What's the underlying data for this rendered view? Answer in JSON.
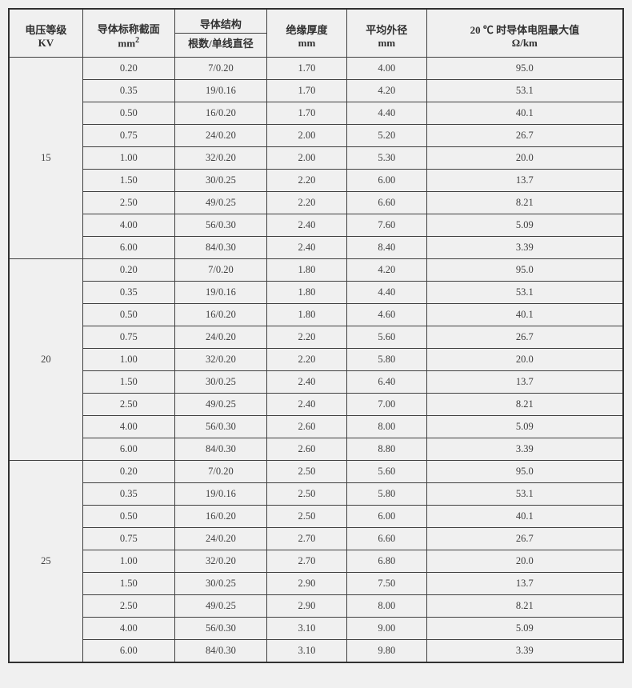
{
  "table": {
    "background_color": "#f0f0f0",
    "border_color": "#404040",
    "text_color": "#404040",
    "font_family": "SimSun",
    "header_fontsize": 13,
    "cell_fontsize": 12.5,
    "col_widths_pct": [
      12,
      15,
      15,
      13,
      13,
      32
    ],
    "header": {
      "voltage_line1": "电压等级",
      "voltage_line2": "KV",
      "cross_section_line1": "导体标称截面",
      "cross_section_line2_prefix": "mm",
      "cross_section_line2_sup": "2",
      "structure_line1": "导体结构",
      "structure_line2": "根数/单线直径",
      "insulation_line1": "绝缘厚度",
      "insulation_line2": "mm",
      "diameter_line1": "平均外径",
      "diameter_line2": "mm",
      "resistance_line1": "20 ℃ 时导体电阻最大值",
      "resistance_line2": "Ω/km"
    },
    "groups": [
      {
        "voltage": "15",
        "rows": [
          {
            "cs": "0.20",
            "struct": "7/0.20",
            "ins": "1.70",
            "dia": "4.00",
            "res": "95.0"
          },
          {
            "cs": "0.35",
            "struct": "19/0.16",
            "ins": "1.70",
            "dia": "4.20",
            "res": "53.1"
          },
          {
            "cs": "0.50",
            "struct": "16/0.20",
            "ins": "1.70",
            "dia": "4.40",
            "res": "40.1"
          },
          {
            "cs": "0.75",
            "struct": "24/0.20",
            "ins": "2.00",
            "dia": "5.20",
            "res": "26.7"
          },
          {
            "cs": "1.00",
            "struct": "32/0.20",
            "ins": "2.00",
            "dia": "5.30",
            "res": "20.0"
          },
          {
            "cs": "1.50",
            "struct": "30/0.25",
            "ins": "2.20",
            "dia": "6.00",
            "res": "13.7"
          },
          {
            "cs": "2.50",
            "struct": "49/0.25",
            "ins": "2.20",
            "dia": "6.60",
            "res": "8.21"
          },
          {
            "cs": "4.00",
            "struct": "56/0.30",
            "ins": "2.40",
            "dia": "7.60",
            "res": "5.09"
          },
          {
            "cs": "6.00",
            "struct": "84/0.30",
            "ins": "2.40",
            "dia": "8.40",
            "res": "3.39"
          }
        ]
      },
      {
        "voltage": "20",
        "rows": [
          {
            "cs": "0.20",
            "struct": "7/0.20",
            "ins": "1.80",
            "dia": "4.20",
            "res": "95.0"
          },
          {
            "cs": "0.35",
            "struct": "19/0.16",
            "ins": "1.80",
            "dia": "4.40",
            "res": "53.1"
          },
          {
            "cs": "0.50",
            "struct": "16/0.20",
            "ins": "1.80",
            "dia": "4.60",
            "res": "40.1"
          },
          {
            "cs": "0.75",
            "struct": "24/0.20",
            "ins": "2.20",
            "dia": "5.60",
            "res": "26.7"
          },
          {
            "cs": "1.00",
            "struct": "32/0.20",
            "ins": "2.20",
            "dia": "5.80",
            "res": "20.0"
          },
          {
            "cs": "1.50",
            "struct": "30/0.25",
            "ins": "2.40",
            "dia": "6.40",
            "res": "13.7"
          },
          {
            "cs": "2.50",
            "struct": "49/0.25",
            "ins": "2.40",
            "dia": "7.00",
            "res": "8.21"
          },
          {
            "cs": "4.00",
            "struct": "56/0.30",
            "ins": "2.60",
            "dia": "8.00",
            "res": "5.09"
          },
          {
            "cs": "6.00",
            "struct": "84/0.30",
            "ins": "2.60",
            "dia": "8.80",
            "res": "3.39"
          }
        ]
      },
      {
        "voltage": "25",
        "rows": [
          {
            "cs": "0.20",
            "struct": "7/0.20",
            "ins": "2.50",
            "dia": "5.60",
            "res": "95.0"
          },
          {
            "cs": "0.35",
            "struct": "19/0.16",
            "ins": "2.50",
            "dia": "5.80",
            "res": "53.1"
          },
          {
            "cs": "0.50",
            "struct": "16/0.20",
            "ins": "2.50",
            "dia": "6.00",
            "res": "40.1"
          },
          {
            "cs": "0.75",
            "struct": "24/0.20",
            "ins": "2.70",
            "dia": "6.60",
            "res": "26.7"
          },
          {
            "cs": "1.00",
            "struct": "32/0.20",
            "ins": "2.70",
            "dia": "6.80",
            "res": "20.0"
          },
          {
            "cs": "1.50",
            "struct": "30/0.25",
            "ins": "2.90",
            "dia": "7.50",
            "res": "13.7"
          },
          {
            "cs": "2.50",
            "struct": "49/0.25",
            "ins": "2.90",
            "dia": "8.00",
            "res": "8.21"
          },
          {
            "cs": "4.00",
            "struct": "56/0.30",
            "ins": "3.10",
            "dia": "9.00",
            "res": "5.09"
          },
          {
            "cs": "6.00",
            "struct": "84/0.30",
            "ins": "3.10",
            "dia": "9.80",
            "res": "3.39"
          }
        ]
      }
    ]
  }
}
